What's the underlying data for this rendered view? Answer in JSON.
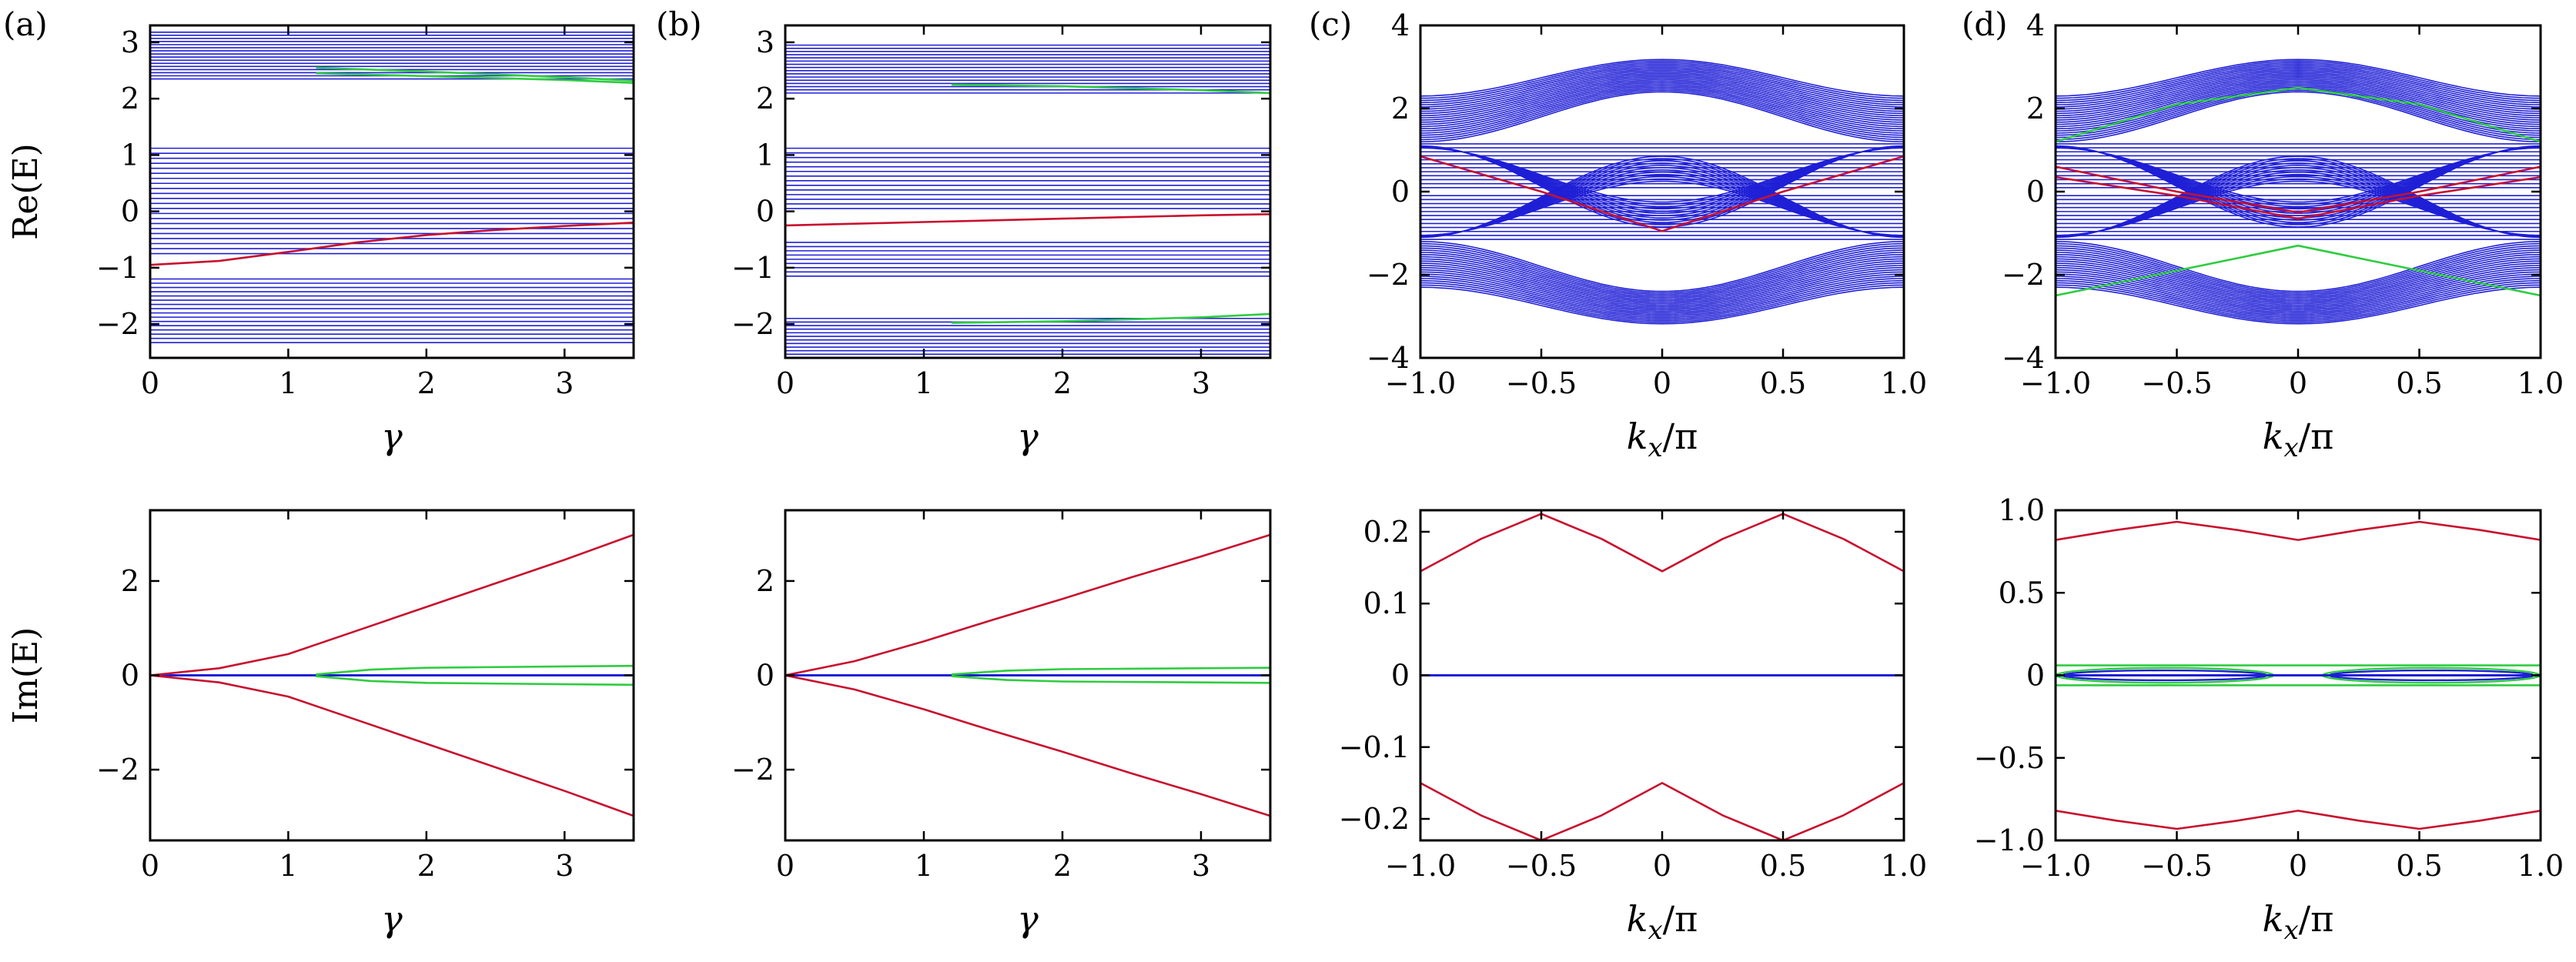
{
  "figure": {
    "panel_letters": [
      "(a)",
      "(b)",
      "(c)",
      "(d)"
    ],
    "row_ylabels": [
      "Re(E)",
      "Im(E)"
    ]
  },
  "colors": {
    "bulk": "#1f1fd6",
    "edge_red": "#c8102e",
    "edge_green": "#2ecc40",
    "axes": "#000000"
  },
  "chart_data": [
    {
      "id": "a-top",
      "panel": "(a)",
      "type": "line",
      "title": "",
      "xlabel": "γ",
      "ylabel": "Re(E)",
      "xlim": [
        0,
        3.5
      ],
      "ylim": [
        -2.6,
        3.3
      ],
      "xticks": [
        0,
        1,
        2,
        3
      ],
      "xtick_labels": [
        "0",
        "1",
        "2",
        "3"
      ],
      "yticks": [
        -2,
        -1,
        0,
        1,
        2,
        3
      ],
      "ytick_labels": [
        "−2",
        "−1",
        "0",
        "1",
        "2",
        "3"
      ],
      "bulk_bands": [
        {
          "from": 2.35,
          "to": 3.18,
          "count": 16
        },
        {
          "from": -0.75,
          "to": 1.12,
          "count": 22
        },
        {
          "from": -2.33,
          "to": -1.2,
          "count": 16
        }
      ],
      "series": [
        {
          "name": "edge-red",
          "color": "red",
          "x": [
            0,
            0.5,
            1.0,
            1.5,
            2.0,
            2.5,
            3.0,
            3.5
          ],
          "y": [
            -0.95,
            -0.88,
            -0.72,
            -0.55,
            -0.42,
            -0.33,
            -0.26,
            -0.2
          ]
        },
        {
          "name": "edge-green-upper",
          "color": "green",
          "x": [
            1.2,
            2.0,
            3.0,
            3.5
          ],
          "y": [
            2.55,
            2.48,
            2.38,
            2.32
          ]
        },
        {
          "name": "edge-green-lower",
          "color": "green",
          "x": [
            1.2,
            2.0,
            3.0,
            3.5
          ],
          "y": [
            2.45,
            2.4,
            2.33,
            2.28
          ]
        }
      ]
    },
    {
      "id": "b-top",
      "panel": "(b)",
      "type": "line",
      "title": "",
      "xlabel": "γ",
      "ylabel": "",
      "xlim": [
        0,
        3.5
      ],
      "ylim": [
        -2.6,
        3.3
      ],
      "xticks": [
        0,
        1,
        2,
        3
      ],
      "xtick_labels": [
        "0",
        "1",
        "2",
        "3"
      ],
      "yticks": [
        -2,
        -1,
        0,
        1,
        2,
        3
      ],
      "ytick_labels": [
        "−2",
        "−1",
        "0",
        "1",
        "2",
        "3"
      ],
      "bulk_bands": [
        {
          "from": 2.1,
          "to": 2.95,
          "count": 16
        },
        {
          "from": 0.05,
          "to": 1.12,
          "count": 14
        },
        {
          "from": -1.15,
          "to": -0.55,
          "count": 9
        },
        {
          "from": -2.6,
          "to": -1.9,
          "count": 12
        }
      ],
      "series": [
        {
          "name": "edge-red",
          "color": "red",
          "x": [
            0,
            0.5,
            1.0,
            1.5,
            2.0,
            2.5,
            3.0,
            3.5
          ],
          "y": [
            -0.25,
            -0.22,
            -0.19,
            -0.16,
            -0.13,
            -0.1,
            -0.07,
            -0.05
          ]
        },
        {
          "name": "edge-green-upper",
          "color": "green",
          "x": [
            1.2,
            2.0,
            3.0,
            3.5
          ],
          "y": [
            2.25,
            2.22,
            2.15,
            2.1
          ]
        },
        {
          "name": "edge-green-lower",
          "color": "green",
          "x": [
            1.2,
            2.0,
            3.0,
            3.5
          ],
          "y": [
            -1.98,
            -1.95,
            -1.88,
            -1.82
          ]
        }
      ]
    },
    {
      "id": "c-top",
      "panel": "(c)",
      "type": "line",
      "title": "",
      "xlabel": "k_x/π",
      "ylabel": "",
      "xlim": [
        -1,
        1
      ],
      "ylim": [
        -4,
        4
      ],
      "xticks": [
        -1,
        -0.5,
        0,
        0.5,
        1
      ],
      "xtick_labels": [
        "−1.0",
        "−0.5",
        "0",
        "0.5",
        "1.0"
      ],
      "yticks": [
        -4,
        -2,
        0,
        2,
        4
      ],
      "ytick_labels": [
        "−4",
        "−2",
        "0",
        "2",
        "4"
      ],
      "bulk_bands": [
        {
          "kind": "dome",
          "outer_edge": 2.3,
          "outer_mid": 3.18,
          "inner_edge": 1.2,
          "inner_mid": 2.4,
          "count": 22
        },
        {
          "kind": "middle",
          "top": 1.15,
          "bottom": -1.15,
          "vee_edge": 1.1,
          "vee_mid": -0.85,
          "count": 24
        },
        {
          "kind": "bowl",
          "outer_edge": -2.3,
          "outer_mid": -3.18,
          "inner_edge": -1.2,
          "inner_mid": -2.4,
          "count": 22
        }
      ],
      "series": [
        {
          "name": "edge-red",
          "color": "red",
          "x": [
            -1,
            -0.5,
            0,
            0.5,
            1
          ],
          "y": [
            0.85,
            0.0,
            -0.95,
            0.0,
            0.85
          ]
        }
      ]
    },
    {
      "id": "d-top",
      "panel": "(d)",
      "type": "line",
      "title": "",
      "xlabel": "k_x/π",
      "ylabel": "",
      "xlim": [
        -1,
        1
      ],
      "ylim": [
        -4,
        4
      ],
      "xticks": [
        -1,
        -0.5,
        0,
        0.5,
        1
      ],
      "xtick_labels": [
        "−1.0",
        "−0.5",
        "0",
        "0.5",
        "1.0"
      ],
      "yticks": [
        -4,
        -2,
        0,
        2,
        4
      ],
      "ytick_labels": [
        "−4",
        "−2",
        "0",
        "2",
        "4"
      ],
      "bulk_bands": [
        {
          "kind": "dome",
          "outer_edge": 2.3,
          "outer_mid": 3.18,
          "inner_edge": 1.2,
          "inner_mid": 2.4,
          "count": 22
        },
        {
          "kind": "middle",
          "top": 1.15,
          "bottom": -1.15,
          "vee_edge": 1.1,
          "vee_mid": -0.85,
          "count": 24
        },
        {
          "kind": "bowl",
          "outer_edge": -2.3,
          "outer_mid": -3.18,
          "inner_edge": -1.2,
          "inner_mid": -2.4,
          "count": 22
        }
      ],
      "series": [
        {
          "name": "edge-red-1",
          "color": "red",
          "x": [
            -1,
            -0.5,
            0,
            0.5,
            1
          ],
          "y": [
            0.6,
            0.0,
            -0.5,
            0.0,
            0.6
          ]
        },
        {
          "name": "edge-red-2",
          "color": "red",
          "x": [
            -1,
            -0.5,
            0,
            0.5,
            1
          ],
          "y": [
            0.35,
            -0.1,
            -0.65,
            -0.1,
            0.35
          ]
        },
        {
          "name": "edge-green-upper",
          "color": "green",
          "x": [
            -1,
            -0.5,
            0,
            0.5,
            1
          ],
          "y": [
            1.2,
            2.1,
            2.5,
            2.1,
            1.2
          ]
        },
        {
          "name": "edge-green-lower",
          "color": "green",
          "x": [
            -1,
            -0.5,
            0,
            0.5,
            1
          ],
          "y": [
            -2.5,
            -1.9,
            -1.3,
            -1.9,
            -2.5
          ]
        }
      ]
    },
    {
      "id": "a-bottom",
      "panel": "(a)",
      "type": "line",
      "title": "",
      "xlabel": "γ",
      "ylabel": "Im(E)",
      "xlim": [
        0,
        3.5
      ],
      "ylim": [
        -3.5,
        3.5
      ],
      "xticks": [
        0,
        1,
        2,
        3
      ],
      "xtick_labels": [
        "0",
        "1",
        "2",
        "3"
      ],
      "yticks": [
        -2,
        0,
        2
      ],
      "ytick_labels": [
        "−2",
        "0",
        "2"
      ],
      "bulk_bands": [],
      "series": [
        {
          "name": "bulk-zero",
          "color": "blue",
          "x": [
            0,
            3.5
          ],
          "y": [
            0,
            0
          ]
        },
        {
          "name": "edge-red-up",
          "color": "red",
          "x": [
            0,
            0.5,
            1.0,
            1.5,
            2.0,
            2.5,
            3.0,
            3.5
          ],
          "y": [
            0,
            0.15,
            0.45,
            0.95,
            1.45,
            1.95,
            2.45,
            2.98
          ]
        },
        {
          "name": "edge-red-down",
          "color": "red",
          "x": [
            0,
            0.5,
            1.0,
            1.5,
            2.0,
            2.5,
            3.0,
            3.5
          ],
          "y": [
            0,
            -0.15,
            -0.45,
            -0.95,
            -1.45,
            -1.95,
            -2.45,
            -2.98
          ]
        },
        {
          "name": "edge-green-up",
          "color": "green",
          "x": [
            1.2,
            1.6,
            2.0,
            3.0,
            3.5
          ],
          "y": [
            0.02,
            0.12,
            0.16,
            0.19,
            0.2
          ]
        },
        {
          "name": "edge-green-down",
          "color": "green",
          "x": [
            1.2,
            1.6,
            2.0,
            3.0,
            3.5
          ],
          "y": [
            -0.02,
            -0.12,
            -0.16,
            -0.19,
            -0.2
          ]
        }
      ]
    },
    {
      "id": "b-bottom",
      "panel": "(b)",
      "type": "line",
      "title": "",
      "xlabel": "γ",
      "ylabel": "",
      "xlim": [
        0,
        3.5
      ],
      "ylim": [
        -3.5,
        3.5
      ],
      "xticks": [
        0,
        1,
        2,
        3
      ],
      "xtick_labels": [
        "0",
        "1",
        "2",
        "3"
      ],
      "yticks": [
        -2,
        0,
        2
      ],
      "ytick_labels": [
        "−2",
        "0",
        "2"
      ],
      "bulk_bands": [],
      "series": [
        {
          "name": "bulk-zero",
          "color": "blue",
          "x": [
            0,
            3.5
          ],
          "y": [
            0,
            0
          ]
        },
        {
          "name": "edge-red-up",
          "color": "red",
          "x": [
            0,
            0.5,
            1.0,
            1.5,
            2.0,
            2.5,
            3.0,
            3.5
          ],
          "y": [
            0,
            0.3,
            0.72,
            1.18,
            1.62,
            2.08,
            2.52,
            2.98
          ]
        },
        {
          "name": "edge-red-down",
          "color": "red",
          "x": [
            0,
            0.5,
            1.0,
            1.5,
            2.0,
            2.5,
            3.0,
            3.5
          ],
          "y": [
            0,
            -0.3,
            -0.72,
            -1.18,
            -1.62,
            -2.08,
            -2.52,
            -2.98
          ]
        },
        {
          "name": "edge-green-up",
          "color": "green",
          "x": [
            1.2,
            1.6,
            2.0,
            3.0,
            3.5
          ],
          "y": [
            0.02,
            0.1,
            0.13,
            0.15,
            0.16
          ]
        },
        {
          "name": "edge-green-down",
          "color": "green",
          "x": [
            1.2,
            1.6,
            2.0,
            3.0,
            3.5
          ],
          "y": [
            -0.02,
            -0.1,
            -0.13,
            -0.15,
            -0.16
          ]
        }
      ]
    },
    {
      "id": "c-bottom",
      "panel": "(c)",
      "type": "line",
      "title": "",
      "xlabel": "k_x/π",
      "ylabel": "",
      "xlim": [
        -1,
        1
      ],
      "ylim": [
        -0.23,
        0.23
      ],
      "xticks": [
        -1,
        -0.5,
        0,
        0.5,
        1
      ],
      "xtick_labels": [
        "−1.0",
        "−0.5",
        "0",
        "0.5",
        "1.0"
      ],
      "yticks": [
        -0.2,
        -0.1,
        0,
        0.1,
        0.2
      ],
      "ytick_labels": [
        "−0.2",
        "−0.1",
        "0",
        "0.1",
        "0.2"
      ],
      "bulk_bands": [],
      "series": [
        {
          "name": "bulk-zero",
          "color": "blue",
          "x": [
            -1,
            1
          ],
          "y": [
            0,
            0
          ]
        },
        {
          "name": "edge-red-up",
          "color": "red",
          "x": [
            -1,
            -0.75,
            -0.5,
            -0.25,
            0,
            0.25,
            0.5,
            0.75,
            1
          ],
          "y": [
            0.145,
            0.19,
            0.225,
            0.19,
            0.145,
            0.19,
            0.225,
            0.19,
            0.145
          ]
        },
        {
          "name": "edge-red-down",
          "color": "red",
          "x": [
            -1,
            -0.75,
            -0.5,
            -0.25,
            0,
            0.25,
            0.5,
            0.75,
            1
          ],
          "y": [
            -0.15,
            -0.195,
            -0.23,
            -0.195,
            -0.15,
            -0.195,
            -0.23,
            -0.195,
            -0.15
          ]
        }
      ]
    },
    {
      "id": "d-bottom",
      "panel": "(d)",
      "type": "line",
      "title": "",
      "xlabel": "k_x/π",
      "ylabel": "",
      "xlim": [
        -1,
        1
      ],
      "ylim": [
        -1,
        1
      ],
      "xticks": [
        -1,
        -0.5,
        0,
        0.5,
        1
      ],
      "xtick_labels": [
        "−1.0",
        "−0.5",
        "0",
        "0.5",
        "1.0"
      ],
      "yticks": [
        -1,
        -0.5,
        0,
        0.5,
        1
      ],
      "ytick_labels": [
        "−1.0",
        "−0.5",
        "0",
        "0.5",
        "1.0"
      ],
      "bulk_bands": [],
      "series": [
        {
          "name": "bulk-zero",
          "color": "blue",
          "x": [
            -1,
            1
          ],
          "y": [
            0,
            0
          ]
        },
        {
          "name": "edge-red-up",
          "color": "red",
          "x": [
            -1,
            -0.75,
            -0.5,
            -0.25,
            0,
            0.25,
            0.5,
            0.75,
            1
          ],
          "y": [
            0.82,
            0.88,
            0.93,
            0.88,
            0.82,
            0.88,
            0.93,
            0.88,
            0.82
          ]
        },
        {
          "name": "edge-red-down",
          "color": "red",
          "x": [
            -1,
            -0.75,
            -0.5,
            -0.25,
            0,
            0.25,
            0.5,
            0.75,
            1
          ],
          "y": [
            -0.82,
            -0.88,
            -0.93,
            -0.88,
            -0.82,
            -0.88,
            -0.93,
            -0.88,
            -0.82
          ]
        },
        {
          "name": "edge-green-1",
          "color": "green",
          "x": [
            -1,
            1
          ],
          "y": [
            0.06,
            0.06
          ]
        },
        {
          "name": "edge-green-2",
          "color": "green",
          "x": [
            -1,
            1
          ],
          "y": [
            -0.06,
            -0.06
          ]
        }
      ],
      "loops": [
        {
          "color": "blue",
          "cx": -0.55,
          "rx": 0.42,
          "ry": 0.03
        },
        {
          "color": "blue",
          "cx": 0.55,
          "rx": 0.42,
          "ry": 0.03
        },
        {
          "color": "green",
          "cx": -0.55,
          "rx": 0.45,
          "ry": 0.045
        },
        {
          "color": "green",
          "cx": 0.55,
          "rx": 0.45,
          "ry": 0.045
        }
      ]
    }
  ]
}
